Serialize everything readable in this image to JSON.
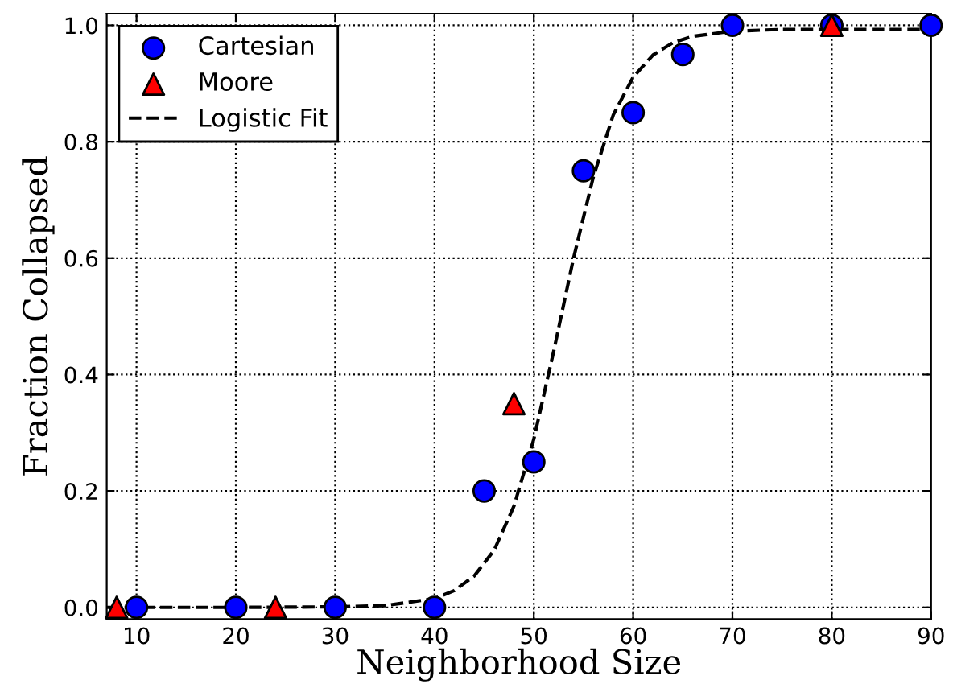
{
  "chart_data": {
    "type": "scatter",
    "xlabel": "Neighborhood Size",
    "ylabel": "Fraction Collapsed",
    "xlim": [
      7,
      90
    ],
    "ylim": [
      -0.02,
      1.02
    ],
    "xticks": [
      10,
      20,
      30,
      40,
      50,
      60,
      70,
      80,
      90
    ],
    "yticks": [
      {
        "value": 0,
        "label": "0.0"
      },
      0.2,
      0.4,
      0.6,
      0.8,
      {
        "value": 1,
        "label": "1.0"
      }
    ],
    "grid": true,
    "legend": "top left",
    "series": [
      {
        "name": "Cartesian",
        "marker": "circle",
        "color": "#0000ff",
        "x": [
          10,
          20,
          30,
          40,
          45,
          50,
          55,
          60,
          65,
          70,
          80,
          90
        ],
        "values": [
          0,
          0,
          0,
          0,
          0.2,
          0.25,
          0.75,
          0.85,
          0.95,
          1,
          1,
          1
        ]
      },
      {
        "name": "Moore",
        "marker": "triangle",
        "color": "#ff0000",
        "x": [
          8,
          24,
          48,
          80
        ],
        "values": [
          0,
          0,
          0.35,
          1
        ]
      },
      {
        "name": "Logistic Fit",
        "type": "line",
        "line_style": "dashed",
        "marker": "none",
        "color": "#000000",
        "x": [
          7,
          20,
          30,
          35,
          40,
          42,
          44,
          46,
          48,
          50,
          52,
          54,
          56,
          58,
          60,
          62,
          64,
          66,
          70,
          75,
          80,
          90
        ],
        "values": [
          0,
          0,
          0.001,
          0.003,
          0.015,
          0.029,
          0.054,
          0.098,
          0.174,
          0.289,
          0.44,
          0.6,
          0.74,
          0.846,
          0.911,
          0.949,
          0.97,
          0.981,
          0.99,
          0.993,
          0.993,
          0.993
        ]
      }
    ]
  }
}
